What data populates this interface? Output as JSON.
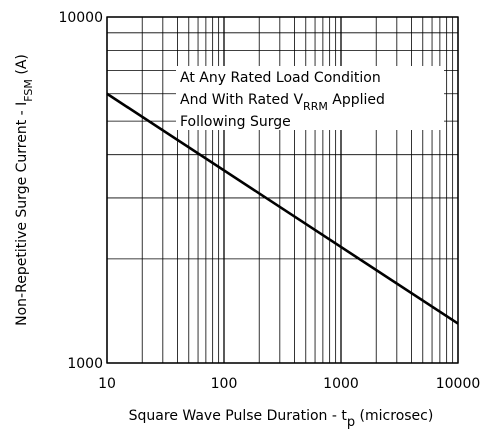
{
  "chart_data": {
    "type": "line",
    "title": "",
    "xlabel": {
      "text": "Square Wave Pulse Duration - t",
      "subscript": "p",
      "suffix": " (microsec)"
    },
    "ylabel": {
      "text": "Non-Repetitive Surge Current - I",
      "subscript": "FSM",
      "suffix": " (A)"
    },
    "xscale": "log",
    "yscale": "log",
    "xlim": [
      10,
      10000
    ],
    "ylim": [
      1000,
      10000
    ],
    "x_ticks": [
      10,
      100,
      1000,
      10000
    ],
    "x_tick_labels": [
      "10",
      "100",
      "1000",
      "10000"
    ],
    "y_ticks": [
      1000,
      10000
    ],
    "y_tick_labels": [
      "1000",
      "10000"
    ],
    "grid": true,
    "series": [
      {
        "x": [
          10,
          10000
        ],
        "y": [
          6000,
          1300
        ]
      }
    ],
    "annotation": {
      "line1": "At Any Rated Load Condition",
      "line2_pre": "And With Rated V",
      "line2_sub": "RRM",
      "line2_post": " Applied",
      "line3": "Following Surge"
    }
  }
}
